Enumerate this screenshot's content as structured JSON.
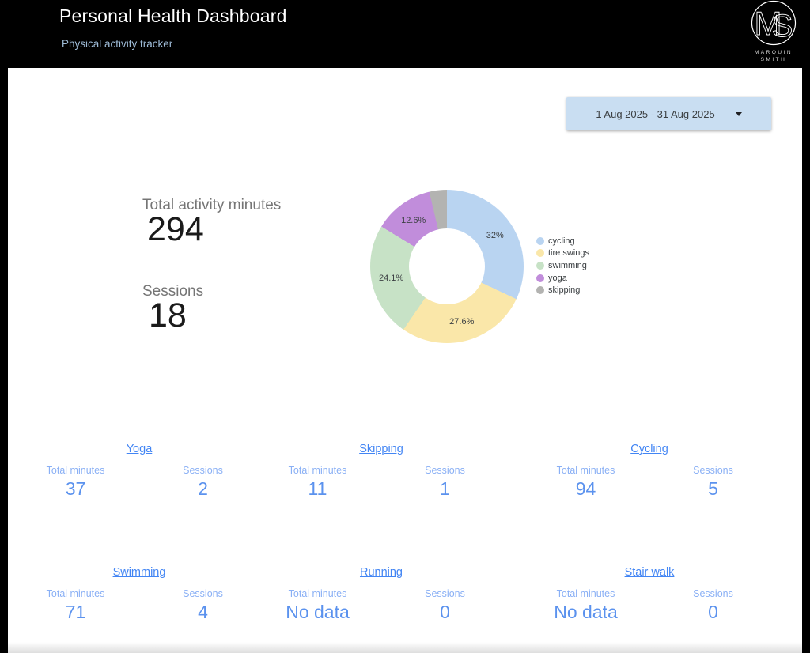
{
  "theme": {
    "header_bg": "#000000",
    "panel_bg": "#ffffff",
    "accent_blue": "#4285f4",
    "stat_label_blue": "#8ab0f5",
    "stat_value_blue": "#5b92ee",
    "date_selector_bg": "#c9def2",
    "summary_label_gray": "#757575"
  },
  "header": {
    "title": "Personal Health Dashboard",
    "subtitle": "Physical activity tracker",
    "logo": {
      "monogram": "MS",
      "name_line1": "MARQUIN",
      "name_line2": "SMITH"
    }
  },
  "date_range": {
    "value": "1 Aug 2025 - 31 Aug 2025"
  },
  "summary": {
    "total_minutes_label": "Total activity minutes",
    "total_minutes_value": "294",
    "sessions_label": "Sessions",
    "sessions_value": "18"
  },
  "chart_data": {
    "type": "pie",
    "donut": true,
    "legend_position": "right",
    "labels": [
      "cycling",
      "tire swings",
      "swimming",
      "yoga",
      "skipping"
    ],
    "values": [
      32,
      27.6,
      24.1,
      12.6,
      3.7
    ],
    "percent_labels": [
      "32%",
      "27.6%",
      "24.1%",
      "12.6%",
      ""
    ],
    "colors": [
      "#b9d4f1",
      "#fae7a9",
      "#c7e2c6",
      "#c18ddb",
      "#b3b3b1"
    ],
    "title": ""
  },
  "stat_labels": {
    "total_minutes": "Total minutes",
    "sessions": "Sessions"
  },
  "activities": [
    {
      "name": "Yoga",
      "total_minutes": "37",
      "sessions": "2"
    },
    {
      "name": "Skipping",
      "total_minutes": "11",
      "sessions": "1"
    },
    {
      "name": "Cycling",
      "total_minutes": "94",
      "sessions": "5"
    },
    {
      "name": "Swimming",
      "total_minutes": "71",
      "sessions": "4"
    },
    {
      "name": "Running",
      "total_minutes": "No data",
      "sessions": "0"
    },
    {
      "name": "Stair walk",
      "total_minutes": "No data",
      "sessions": "0"
    }
  ]
}
